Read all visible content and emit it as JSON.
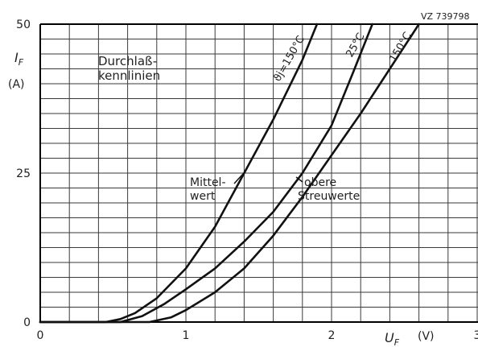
{
  "chart_data": {
    "type": "line",
    "source_label": "VZ 739798",
    "title_lines": [
      "Durchlaß-",
      "kennlinien"
    ],
    "ylabel": "I",
    "ylabel_sub": "F",
    "yunit": "(A)",
    "xlabel": "U",
    "xlabel_sub": "F",
    "xunit": "(V)",
    "xlim": [
      0,
      3
    ],
    "ylim": [
      0,
      50
    ],
    "x_ticks": [
      {
        "value": 0,
        "label": "0"
      },
      {
        "value": 1,
        "label": "1"
      },
      {
        "value": 2,
        "label": "2"
      },
      {
        "value": 3,
        "label": "3"
      }
    ],
    "y_ticks": [
      {
        "value": 0,
        "label": "0"
      },
      {
        "value": 25,
        "label": "25"
      },
      {
        "value": 50,
        "label": "50"
      }
    ],
    "grid": true,
    "series": [
      {
        "name": "ϑj=150°C",
        "x": [
          0.0,
          0.45,
          0.55,
          0.65,
          0.8,
          1.0,
          1.2,
          1.4,
          1.6,
          1.8,
          1.9
        ],
        "y": [
          0,
          0,
          0.5,
          1.5,
          4,
          9,
          16,
          25,
          34,
          44,
          50
        ]
      },
      {
        "name": "25°C",
        "x": [
          0.0,
          0.55,
          0.7,
          0.85,
          1.0,
          1.2,
          1.4,
          1.6,
          1.8,
          2.0,
          2.15,
          2.28
        ],
        "y": [
          0,
          0,
          1,
          3,
          5.5,
          9,
          13.5,
          18.5,
          25,
          33,
          42,
          50
        ]
      },
      {
        "name": "150°C",
        "x": [
          0.0,
          0.75,
          0.9,
          1.0,
          1.2,
          1.4,
          1.6,
          1.8,
          2.0,
          2.2,
          2.4,
          2.6
        ],
        "y": [
          0,
          0,
          0.8,
          2,
          5,
          9,
          14.5,
          21,
          28,
          35,
          42.5,
          50
        ]
      }
    ],
    "annotations": [
      {
        "lines": [
          "Mittel-",
          "wert"
        ]
      },
      {
        "lines": [
          "obere",
          "Streuwerte"
        ]
      }
    ]
  }
}
